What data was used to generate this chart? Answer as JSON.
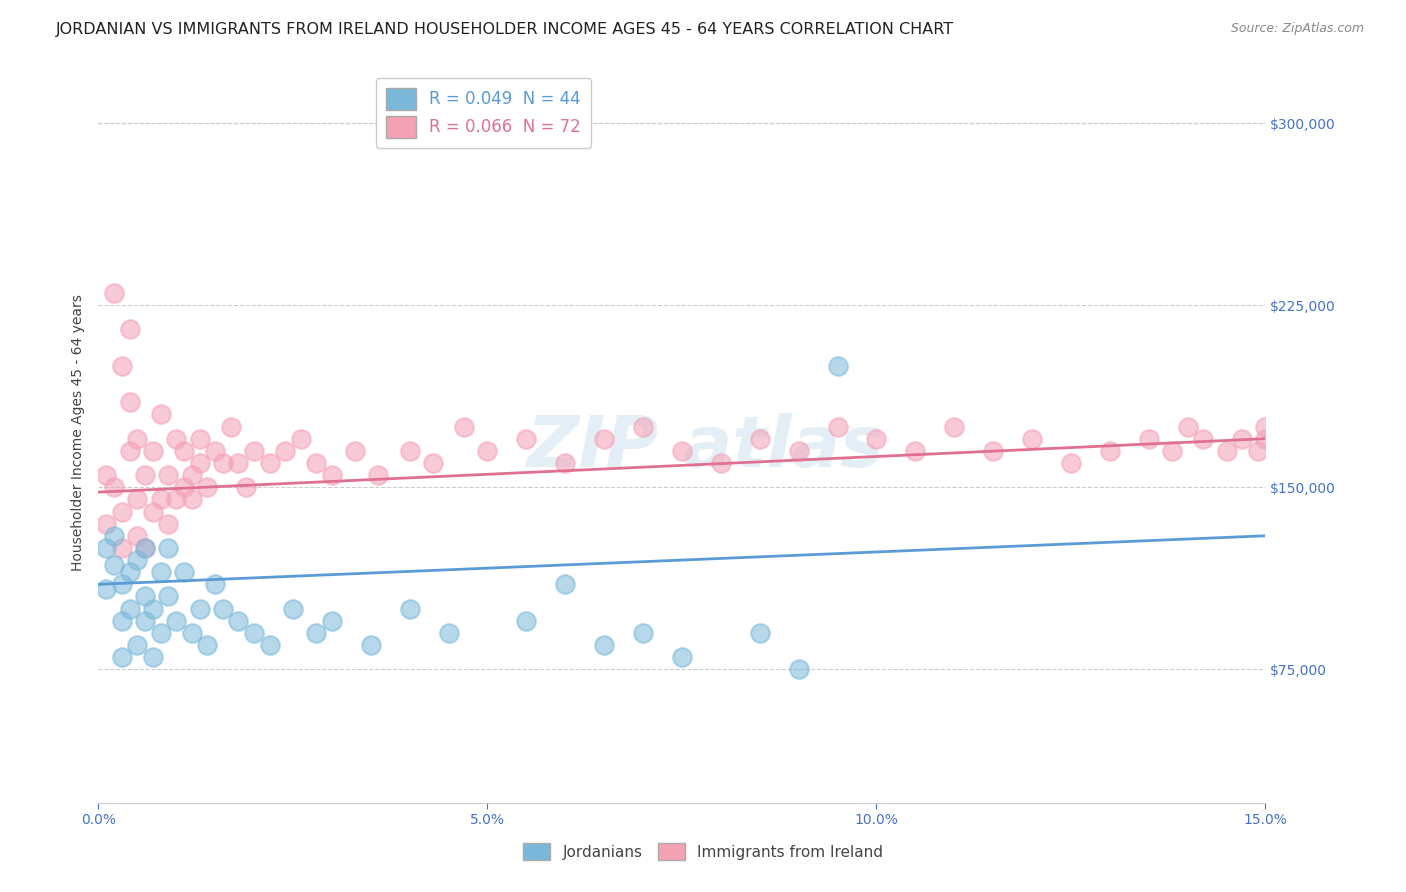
{
  "title": "JORDANIAN VS IMMIGRANTS FROM IRELAND HOUSEHOLDER INCOME AGES 45 - 64 YEARS CORRELATION CHART",
  "source": "Source: ZipAtlas.com",
  "ylabel": "Householder Income Ages 45 - 64 years",
  "xlim": [
    0.0,
    0.15
  ],
  "ylim": [
    20000,
    325000
  ],
  "yticks": [
    75000,
    150000,
    225000,
    300000
  ],
  "ytick_labels": [
    "$75,000",
    "$150,000",
    "$225,000",
    "$300,000"
  ],
  "xticks": [
    0.0,
    0.05,
    0.1,
    0.15
  ],
  "xtick_labels": [
    "0.0%",
    "5.0%",
    "10.0%",
    "15.0%"
  ],
  "legend_label1": "R = 0.049  N = 44",
  "legend_label2": "R = 0.066  N = 72",
  "series1_label": "Jordanians",
  "series2_label": "Immigrants from Ireland",
  "color1": "#7ab8d9",
  "color2": "#f4a0b5",
  "trendline1_color": "#5b9bd5",
  "trendline2_color": "#e07090",
  "title_fontsize": 11.5,
  "axis_label_fontsize": 10,
  "tick_fontsize": 10,
  "legend_fontsize": 12,
  "scatter1_x": [
    0.001,
    0.001,
    0.002,
    0.002,
    0.003,
    0.003,
    0.003,
    0.004,
    0.004,
    0.005,
    0.005,
    0.006,
    0.006,
    0.006,
    0.007,
    0.007,
    0.008,
    0.008,
    0.009,
    0.009,
    0.01,
    0.011,
    0.012,
    0.013,
    0.014,
    0.015,
    0.016,
    0.018,
    0.02,
    0.022,
    0.025,
    0.028,
    0.03,
    0.035,
    0.04,
    0.045,
    0.055,
    0.06,
    0.065,
    0.07,
    0.075,
    0.085,
    0.09,
    0.095
  ],
  "scatter1_y": [
    125000,
    108000,
    118000,
    130000,
    110000,
    95000,
    80000,
    115000,
    100000,
    120000,
    85000,
    105000,
    125000,
    95000,
    100000,
    80000,
    115000,
    90000,
    105000,
    125000,
    95000,
    115000,
    90000,
    100000,
    85000,
    110000,
    100000,
    95000,
    90000,
    85000,
    100000,
    90000,
    95000,
    85000,
    100000,
    90000,
    95000,
    110000,
    85000,
    90000,
    80000,
    90000,
    75000,
    200000
  ],
  "scatter2_x": [
    0.001,
    0.001,
    0.002,
    0.002,
    0.003,
    0.003,
    0.003,
    0.004,
    0.004,
    0.004,
    0.005,
    0.005,
    0.005,
    0.006,
    0.006,
    0.007,
    0.007,
    0.008,
    0.008,
    0.009,
    0.009,
    0.01,
    0.01,
    0.011,
    0.011,
    0.012,
    0.012,
    0.013,
    0.013,
    0.014,
    0.015,
    0.016,
    0.017,
    0.018,
    0.019,
    0.02,
    0.022,
    0.024,
    0.026,
    0.028,
    0.03,
    0.033,
    0.036,
    0.04,
    0.043,
    0.047,
    0.05,
    0.055,
    0.06,
    0.065,
    0.07,
    0.075,
    0.08,
    0.085,
    0.09,
    0.095,
    0.1,
    0.105,
    0.11,
    0.115,
    0.12,
    0.125,
    0.13,
    0.135,
    0.138,
    0.14,
    0.142,
    0.145,
    0.147,
    0.149,
    0.15,
    0.15
  ],
  "scatter2_y": [
    155000,
    135000,
    230000,
    150000,
    200000,
    140000,
    125000,
    215000,
    165000,
    185000,
    145000,
    170000,
    130000,
    155000,
    125000,
    165000,
    140000,
    180000,
    145000,
    155000,
    135000,
    170000,
    145000,
    165000,
    150000,
    155000,
    145000,
    170000,
    160000,
    150000,
    165000,
    160000,
    175000,
    160000,
    150000,
    165000,
    160000,
    165000,
    170000,
    160000,
    155000,
    165000,
    155000,
    165000,
    160000,
    175000,
    165000,
    170000,
    160000,
    170000,
    175000,
    165000,
    160000,
    170000,
    165000,
    175000,
    170000,
    165000,
    175000,
    165000,
    170000,
    160000,
    165000,
    170000,
    165000,
    175000,
    170000,
    165000,
    170000,
    165000,
    175000,
    170000
  ],
  "trendline1_x": [
    0.0,
    0.15
  ],
  "trendline1_y": [
    110000,
    130000
  ],
  "trendline2_x": [
    0.0,
    0.15
  ],
  "trendline2_y": [
    148000,
    170000
  ],
  "grid_color": "#cccccc",
  "bg_color": "#ffffff",
  "tick_color": "#4472c4",
  "watermark_color": "#c8dff0",
  "watermark_alpha": 0.5
}
